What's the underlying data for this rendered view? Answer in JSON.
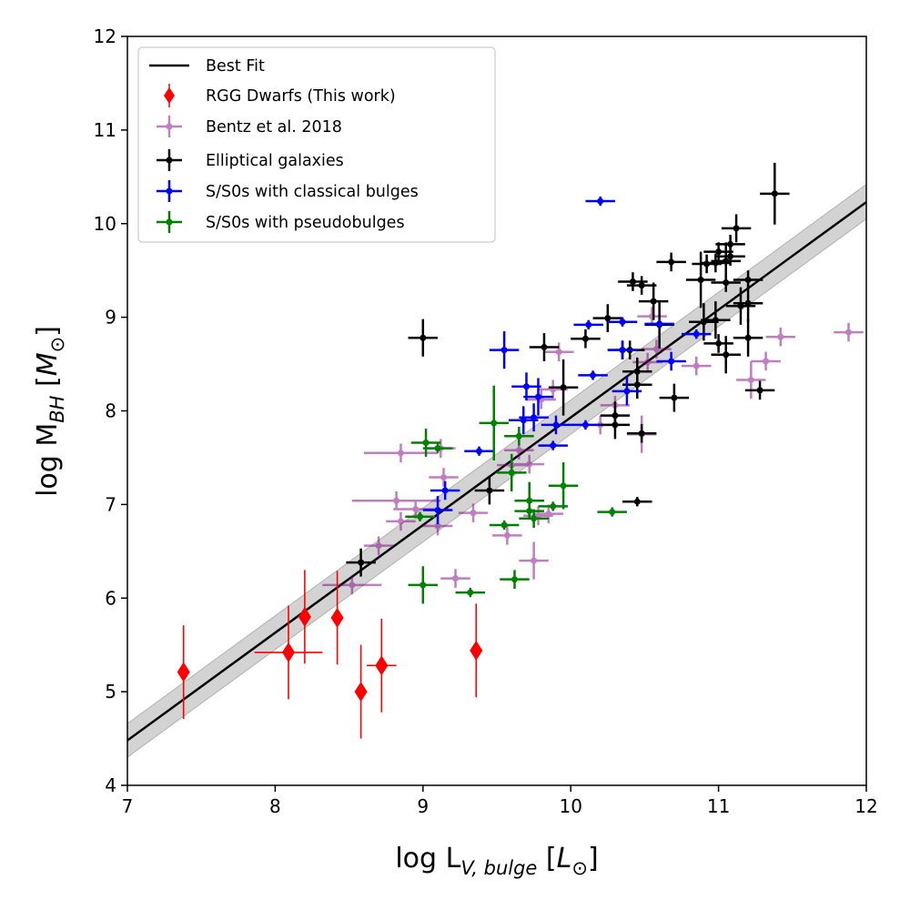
{
  "chart_data": {
    "type": "scatter",
    "title": "",
    "xlabel": {
      "main": "log L",
      "sub": "V, bulge",
      "unit_open": "[",
      "unit_sym": "L",
      "unit_sub": "⊙",
      "unit_close": "]"
    },
    "ylabel": {
      "main": "log M",
      "sub": "BH",
      "unit_open": "[",
      "unit_sym": "M",
      "unit_sub": "⊙",
      "unit_close": "]"
    },
    "xlim": [
      7,
      12
    ],
    "ylim": [
      4,
      12
    ],
    "xticks": [
      "7",
      "8",
      "9",
      "10",
      "11",
      "12"
    ],
    "yticks": [
      "4",
      "5",
      "6",
      "7",
      "8",
      "9",
      "10",
      "11",
      "12"
    ],
    "legend_position": "upper-left",
    "fit": {
      "name": "Best Fit",
      "x": [
        7,
        12
      ],
      "y": [
        4.48,
        10.23
      ],
      "band_lower": [
        4.3,
        10.05
      ],
      "band_upper": [
        4.66,
        10.42
      ],
      "color": "#000000"
    },
    "series": [
      {
        "name": "RGG Dwarfs (This work)",
        "color": "#ff0000",
        "marker": "diamond",
        "points": [
          [
            7.38,
            5.21,
            0,
            0.5
          ],
          [
            8.09,
            5.42,
            0.23,
            0.5
          ],
          [
            8.2,
            5.8,
            0,
            0.5
          ],
          [
            8.42,
            5.79,
            0,
            0.5
          ],
          [
            8.58,
            5.0,
            0,
            0.5
          ],
          [
            8.72,
            5.28,
            0.1,
            0.5
          ],
          [
            9.36,
            5.44,
            0,
            0.5
          ]
        ]
      },
      {
        "name": "Bentz et al. 2018",
        "color": "#800080",
        "marker": "circle",
        "alpha": 0.5,
        "points": [
          [
            8.85,
            7.55,
            0.25,
            0.1
          ],
          [
            8.82,
            7.04,
            0.3,
            0.1
          ],
          [
            8.95,
            6.95,
            0.15,
            0.1
          ],
          [
            8.85,
            6.82,
            0.1,
            0.1
          ],
          [
            8.7,
            6.56,
            0.1,
            0.1
          ],
          [
            8.52,
            6.14,
            0.2,
            0.1
          ],
          [
            9.12,
            7.6,
            0.1,
            0.1
          ],
          [
            9.14,
            7.29,
            0.1,
            0.1
          ],
          [
            9.1,
            6.77,
            0.1,
            0.1
          ],
          [
            9.34,
            6.91,
            0.1,
            0.1
          ],
          [
            9.22,
            6.21,
            0.1,
            0.1
          ],
          [
            9.57,
            6.67,
            0.1,
            0.1
          ],
          [
            9.6,
            7.42,
            0.1,
            0.1
          ],
          [
            9.65,
            7.58,
            0.1,
            0.1
          ],
          [
            9.72,
            7.43,
            0.1,
            0.1
          ],
          [
            9.75,
            6.4,
            0.1,
            0.2
          ],
          [
            9.78,
            6.88,
            0.1,
            0.1
          ],
          [
            9.85,
            6.9,
            0.1,
            0.1
          ],
          [
            9.8,
            8.12,
            0.1,
            0.1
          ],
          [
            9.88,
            8.23,
            0.1,
            0.1
          ],
          [
            9.92,
            8.63,
            0.1,
            0.1
          ],
          [
            10.2,
            7.85,
            0.1,
            0.1
          ],
          [
            10.3,
            8.06,
            0.1,
            0.1
          ],
          [
            10.48,
            7.75,
            0.1,
            0.2
          ],
          [
            10.52,
            8.52,
            0.1,
            0.1
          ],
          [
            10.58,
            8.66,
            0.1,
            0.1
          ],
          [
            10.55,
            9.01,
            0.1,
            0.1
          ],
          [
            10.85,
            8.48,
            0.1,
            0.1
          ],
          [
            11.22,
            8.33,
            0.1,
            0.2
          ],
          [
            11.32,
            8.53,
            0.1,
            0.1
          ],
          [
            11.42,
            8.79,
            0.1,
            0.1
          ],
          [
            11.88,
            8.84,
            0.1,
            0.1
          ]
        ]
      },
      {
        "name": "Elliptical galaxies",
        "color": "#000000",
        "marker": "circle",
        "points": [
          [
            8.58,
            6.38,
            0.1,
            0.15
          ],
          [
            9.0,
            8.78,
            0.1,
            0.2
          ],
          [
            9.45,
            7.15,
            0.1,
            0.15
          ],
          [
            9.82,
            8.68,
            0.1,
            0.15
          ],
          [
            9.95,
            8.25,
            0.1,
            0.3
          ],
          [
            10.1,
            8.77,
            0.1,
            0.1
          ],
          [
            10.25,
            8.99,
            0.1,
            0.15
          ],
          [
            10.3,
            7.95,
            0.1,
            0.15
          ],
          [
            10.3,
            7.85,
            0.1,
            0.15
          ],
          [
            10.35,
            8.65,
            0.1,
            0.1
          ],
          [
            10.4,
            8.65,
            0.1,
            0.1
          ],
          [
            10.42,
            9.38,
            0.1,
            0.1
          ],
          [
            10.45,
            8.42,
            0.1,
            0.15
          ],
          [
            10.45,
            8.28,
            0.1,
            0.15
          ],
          [
            10.48,
            9.34,
            0.1,
            0.1
          ],
          [
            10.45,
            7.03,
            0.1,
            0.05
          ],
          [
            10.48,
            7.76,
            0.1,
            0.1
          ],
          [
            10.56,
            9.17,
            0.1,
            0.2
          ],
          [
            10.6,
            8.92,
            0.1,
            0.25
          ],
          [
            10.68,
            9.59,
            0.1,
            0.1
          ],
          [
            10.7,
            8.14,
            0.1,
            0.15
          ],
          [
            10.88,
            9.4,
            0.1,
            0.3
          ],
          [
            10.92,
            9.57,
            0.1,
            0.1
          ],
          [
            10.9,
            8.95,
            0.1,
            0.2
          ],
          [
            10.98,
            9.58,
            0.1,
            0.1
          ],
          [
            10.98,
            8.97,
            0.1,
            0.2
          ],
          [
            11.0,
            9.7,
            0.1,
            0.1
          ],
          [
            11.0,
            8.72,
            0.1,
            0.1
          ],
          [
            11.05,
            9.6,
            0.1,
            0.2
          ],
          [
            11.05,
            9.37,
            0.1,
            0.1
          ],
          [
            11.05,
            8.6,
            0.1,
            0.2
          ],
          [
            11.08,
            9.78,
            0.1,
            0.1
          ],
          [
            11.08,
            9.65,
            0.1,
            0.1
          ],
          [
            11.12,
            9.95,
            0.1,
            0.15
          ],
          [
            11.15,
            9.12,
            0.1,
            0.2
          ],
          [
            11.2,
            9.4,
            0.1,
            0.1
          ],
          [
            11.2,
            9.15,
            0.1,
            0.2
          ],
          [
            11.2,
            8.78,
            0.1,
            0.2
          ],
          [
            11.28,
            8.22,
            0.1,
            0.1
          ],
          [
            11.38,
            10.32,
            0.1,
            0.33
          ]
        ]
      },
      {
        "name": "S/S0s with classical bulges",
        "color": "#0000ff",
        "marker": "circle",
        "points": [
          [
            9.1,
            6.94,
            0.1,
            0.15
          ],
          [
            9.15,
            7.15,
            0.1,
            0.1
          ],
          [
            9.38,
            7.57,
            0.1,
            0.05
          ],
          [
            9.55,
            8.65,
            0.1,
            0.2
          ],
          [
            9.68,
            7.9,
            0.1,
            0.15
          ],
          [
            9.7,
            8.26,
            0.1,
            0.15
          ],
          [
            9.75,
            7.93,
            0.1,
            0.15
          ],
          [
            9.78,
            8.15,
            0.1,
            0.2
          ],
          [
            9.88,
            7.63,
            0.1,
            0.05
          ],
          [
            9.9,
            7.85,
            0.1,
            0.1
          ],
          [
            10.1,
            7.85,
            0.1,
            0.05
          ],
          [
            10.12,
            8.92,
            0.1,
            0.05
          ],
          [
            10.15,
            8.38,
            0.1,
            0.05
          ],
          [
            10.2,
            10.24,
            0.1,
            0.05
          ],
          [
            10.35,
            8.95,
            0.1,
            0.05
          ],
          [
            10.35,
            8.65,
            0.1,
            0.1
          ],
          [
            10.38,
            8.21,
            0.1,
            0.15
          ],
          [
            10.6,
            8.93,
            0.1,
            0.05
          ],
          [
            10.68,
            8.53,
            0.1,
            0.1
          ],
          [
            10.85,
            8.82,
            0.1,
            0.05
          ]
        ]
      },
      {
        "name": "S/S0s with pseudobulges",
        "color": "#008000",
        "marker": "circle",
        "points": [
          [
            8.98,
            6.87,
            0.1,
            0.05
          ],
          [
            9.0,
            6.14,
            0.1,
            0.2
          ],
          [
            9.02,
            7.66,
            0.1,
            0.15
          ],
          [
            9.1,
            7.6,
            0.1,
            0.05
          ],
          [
            9.32,
            6.06,
            0.1,
            0.05
          ],
          [
            9.48,
            7.87,
            0.1,
            0.4
          ],
          [
            9.55,
            6.78,
            0.1,
            0.05
          ],
          [
            9.6,
            7.34,
            0.1,
            0.2
          ],
          [
            9.62,
            6.2,
            0.1,
            0.1
          ],
          [
            9.65,
            7.73,
            0.1,
            0.1
          ],
          [
            9.72,
            6.93,
            0.1,
            0.05
          ],
          [
            9.72,
            7.04,
            0.1,
            0.2
          ],
          [
            9.75,
            6.85,
            0.1,
            0.1
          ],
          [
            9.88,
            6.98,
            0.1,
            0.05
          ],
          [
            9.95,
            7.2,
            0.1,
            0.25
          ],
          [
            10.28,
            6.92,
            0.1,
            0.05
          ]
        ]
      }
    ]
  }
}
